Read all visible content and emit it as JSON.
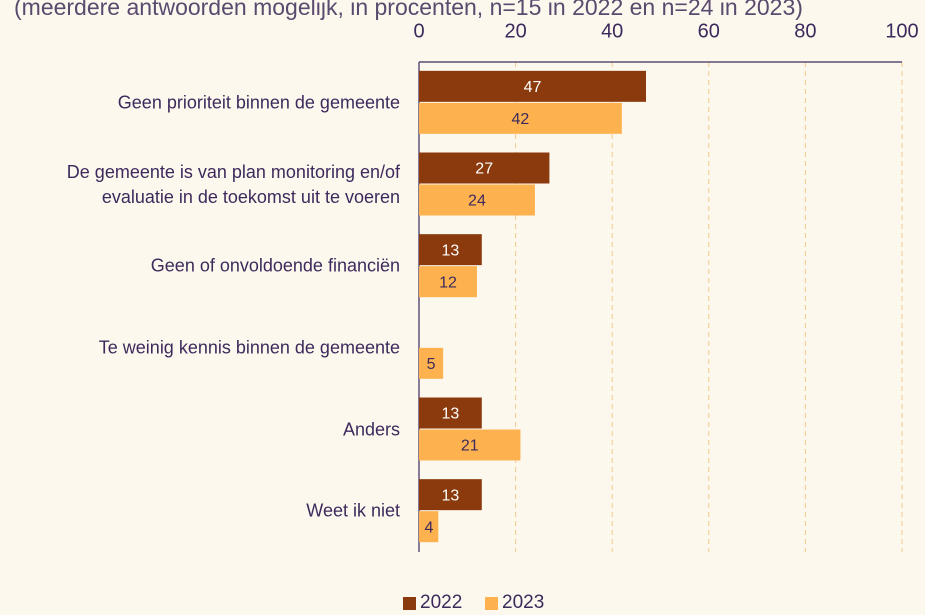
{
  "chart_data": {
    "type": "hbar",
    "subtitle": "(meerdere antwoorden mogelijk, in procenten, n=15 in 2022 en n=24 in 2023)",
    "categories": [
      "Geen prioriteit binnen de gemeente",
      "De gemeente is van plan monitoring en/of evaluatie in de toekomst uit te voeren",
      "Geen of onvoldoende financiën",
      "Te weinig kennis binnen de gemeente",
      "Anders",
      "Weet ik niet"
    ],
    "series": [
      {
        "name": "2022",
        "color": "#8a3a0c",
        "values": [
          47,
          27,
          13,
          null,
          13,
          13
        ]
      },
      {
        "name": "2023",
        "color": "#fdb24f",
        "values": [
          42,
          24,
          12,
          5,
          21,
          4
        ]
      }
    ],
    "xlim": [
      0,
      100
    ],
    "xticks": [
      0,
      20,
      40,
      60,
      80,
      100
    ],
    "grid": true,
    "legend": "bottom"
  }
}
